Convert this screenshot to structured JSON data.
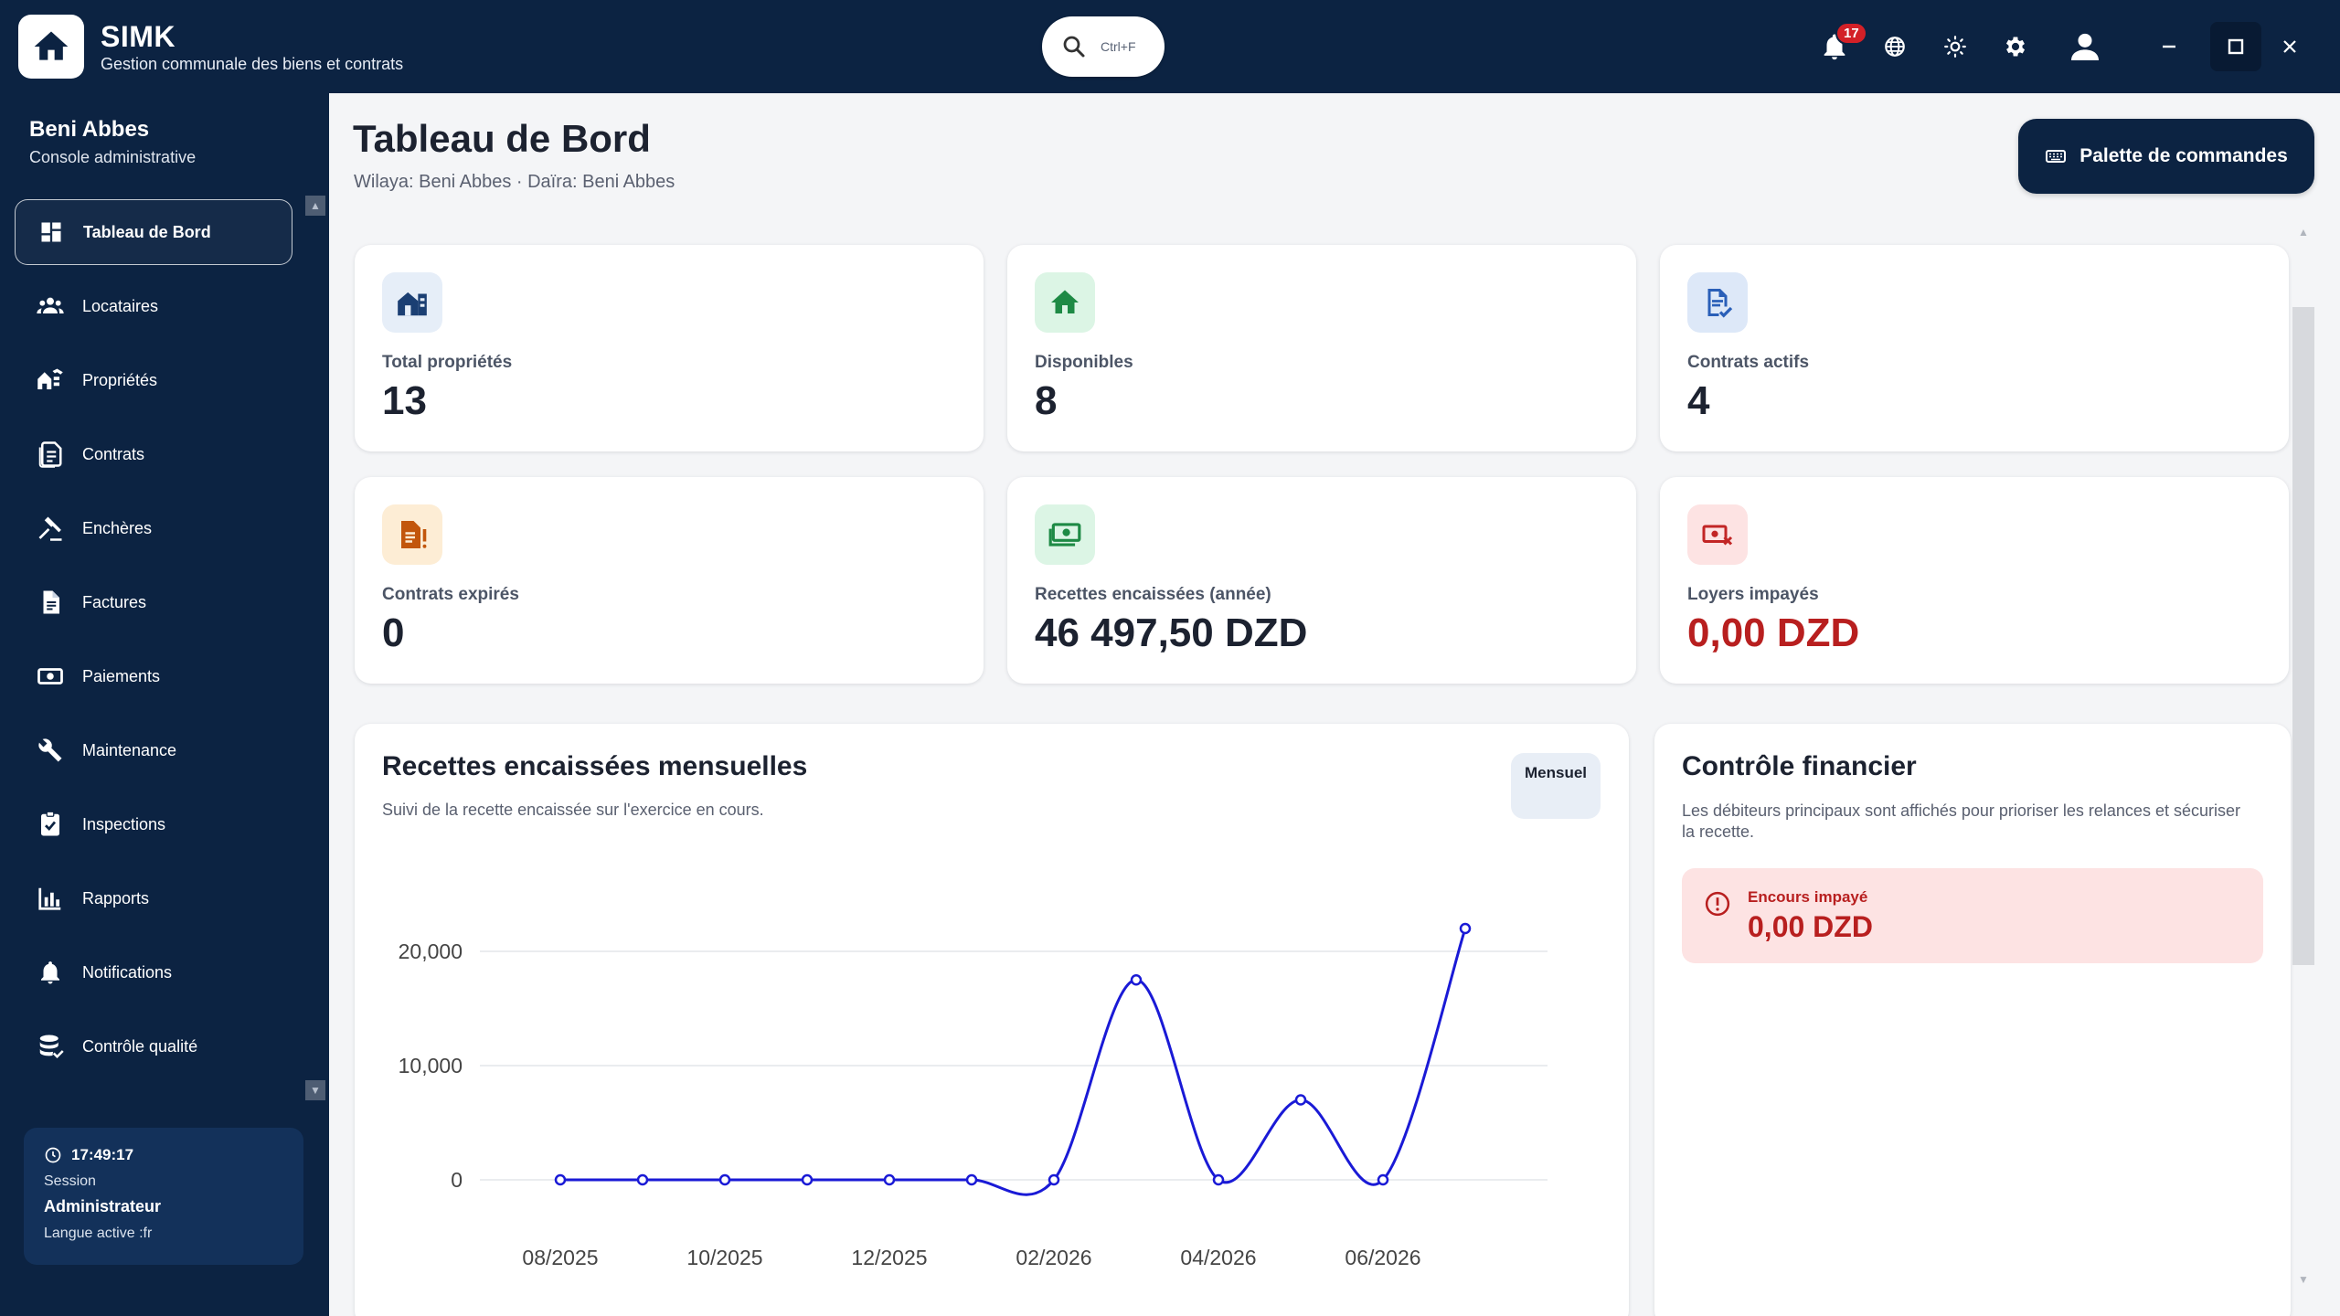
{
  "app": {
    "title": "SIMK",
    "subtitle": "Gestion communale des biens et contrats",
    "search_shortcut": "Ctrl+F",
    "notification_count": "17",
    "icons": [
      "home-icon",
      "search-icon",
      "bell-icon",
      "globe-icon",
      "sun-icon",
      "gear-icon",
      "user-icon",
      "minimize-icon",
      "maximize-icon",
      "close-icon"
    ]
  },
  "sidebar": {
    "commune": "Beni Abbes",
    "role": "Console administrative",
    "items": [
      {
        "label": "Tableau de Bord",
        "icon": "dashboard-icon",
        "active": true
      },
      {
        "label": "Locataires",
        "icon": "people-icon"
      },
      {
        "label": "Propriétés",
        "icon": "properties-icon"
      },
      {
        "label": "Contrats",
        "icon": "contract-icon"
      },
      {
        "label": "Enchères",
        "icon": "gavel-icon"
      },
      {
        "label": "Factures",
        "icon": "invoice-icon"
      },
      {
        "label": "Paiements",
        "icon": "payment-icon"
      },
      {
        "label": "Maintenance",
        "icon": "wrench-icon"
      },
      {
        "label": "Inspections",
        "icon": "checklist-icon"
      },
      {
        "label": "Rapports",
        "icon": "bar-chart-icon"
      },
      {
        "label": "Notifications",
        "icon": "bell-icon"
      },
      {
        "label": "Contrôle qualité",
        "icon": "database-icon"
      }
    ],
    "session": {
      "time": "17:49:17",
      "label": "Session",
      "user": "Administrateur",
      "language": "Langue active :fr"
    }
  },
  "header": {
    "title": "Tableau de Bord",
    "subtitle": "Wilaya: Beni Abbes · Daïra: Beni Abbes",
    "command_palette": "Palette de commandes"
  },
  "stats": [
    {
      "label": "Total propriétés",
      "value": "13",
      "icon": "buildings-icon",
      "color": "#1b3f73",
      "bg": "#e6eef8"
    },
    {
      "label": "Disponibles",
      "value": "8",
      "icon": "home-icon",
      "color": "#1e8a45",
      "bg": "#dcf5e5"
    },
    {
      "label": "Contrats actifs",
      "value": "4",
      "icon": "document-check-icon",
      "color": "#2a5fb8",
      "bg": "#dde8f8"
    },
    {
      "label": "Contrats expirés",
      "value": "0",
      "icon": "document-alert-icon",
      "color": "#c2560c",
      "bg": "#fdedd5"
    },
    {
      "label": "Recettes encaissées (année)",
      "value": "46 497,50 DZD",
      "icon": "money-icon",
      "color": "#1e8a45",
      "bg": "#dcf5e5"
    },
    {
      "label": "Loyers impayés",
      "value": "0,00 DZD",
      "icon": "money-off-icon",
      "color": "#c22525",
      "bg": "#fde3e3",
      "negative": true
    }
  ],
  "revenue": {
    "title": "Recettes encaissées mensuelles",
    "subtitle": "Suivi de la recette encaissée sur l'exercice en cours.",
    "period": "Mensuel"
  },
  "finance": {
    "title": "Contrôle financier",
    "description": "Les débiteurs principaux sont affichés pour prioriser les relances et sécuriser la recette.",
    "alert_label": "Encours impayé",
    "alert_value": "0,00 DZD"
  },
  "chart_data": {
    "type": "line",
    "x": [
      "08/2025",
      "09/2025",
      "10/2025",
      "11/2025",
      "12/2025",
      "01/2026",
      "02/2026",
      "03/2026",
      "04/2026",
      "05/2026",
      "06/2026",
      "07/2026"
    ],
    "x_tick_labels": [
      "08/2025",
      "10/2025",
      "12/2025",
      "02/2026",
      "04/2026",
      "06/2026"
    ],
    "series": [
      {
        "values": [
          0,
          0,
          0,
          0,
          0,
          0,
          0,
          17500,
          0,
          7000,
          0,
          22000
        ]
      }
    ],
    "y_ticks": [
      0,
      10000,
      20000
    ],
    "y_tick_labels": [
      "0",
      "10,000",
      "20,000"
    ],
    "ylim": [
      0,
      22000
    ],
    "grid": true,
    "line_color": "#1a1ad6"
  }
}
